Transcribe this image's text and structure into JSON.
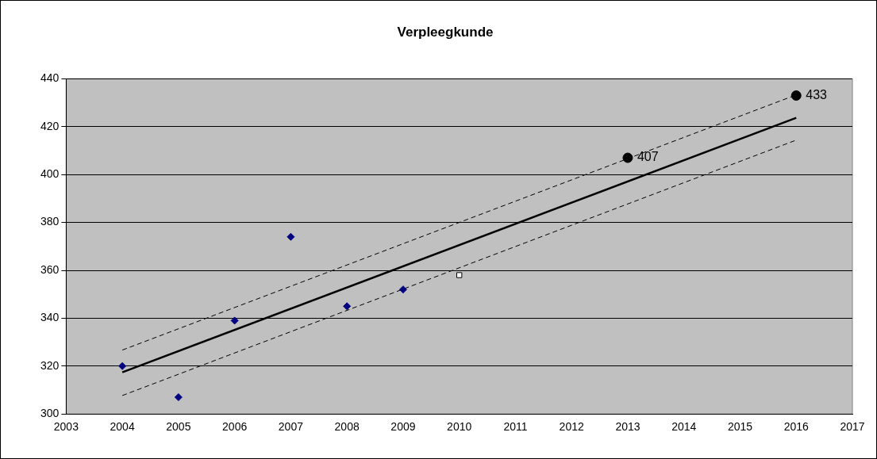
{
  "chart_data": {
    "type": "scatter",
    "title": "Verpleegkunde",
    "xlim": [
      2003,
      2017
    ],
    "xticks": [
      2003,
      2004,
      2005,
      2006,
      2007,
      2008,
      2009,
      2010,
      2011,
      2012,
      2013,
      2014,
      2015,
      2016,
      2017
    ],
    "ylim": [
      300,
      440
    ],
    "yticks": [
      300,
      320,
      340,
      360,
      380,
      400,
      420,
      440
    ],
    "grid": "y",
    "legend": false,
    "series": [
      {
        "type": "line",
        "marker": "none",
        "line_style": "dashed",
        "color": "#000000",
        "x": [
          2004,
          2016
        ],
        "values": [
          326.7,
          433.3
        ]
      },
      {
        "type": "line",
        "marker": "none",
        "line_style": "dashed",
        "color": "#000000",
        "x": [
          2004,
          2016
        ],
        "values": [
          307.7,
          414.4
        ]
      },
      {
        "type": "line",
        "marker": "none",
        "line_style": "solid",
        "color": "#000000",
        "x": [
          2004,
          2016
        ],
        "values": [
          317.4,
          423.7
        ]
      },
      {
        "type": "scatter",
        "marker": "diamond",
        "color": "#000080",
        "x": [
          2004,
          2005,
          2006,
          2007,
          2008,
          2009
        ],
        "values": [
          320,
          307,
          339,
          374,
          345,
          352
        ]
      },
      {
        "type": "scatter",
        "marker": "square",
        "color": "#000000",
        "x": [
          2010
        ],
        "values": [
          358
        ]
      },
      {
        "type": "scatter",
        "marker": "circle",
        "color": "#000000",
        "x": [
          2013,
          2016
        ],
        "values": [
          407,
          433
        ],
        "value_labels": [
          "407",
          "433"
        ]
      }
    ]
  }
}
